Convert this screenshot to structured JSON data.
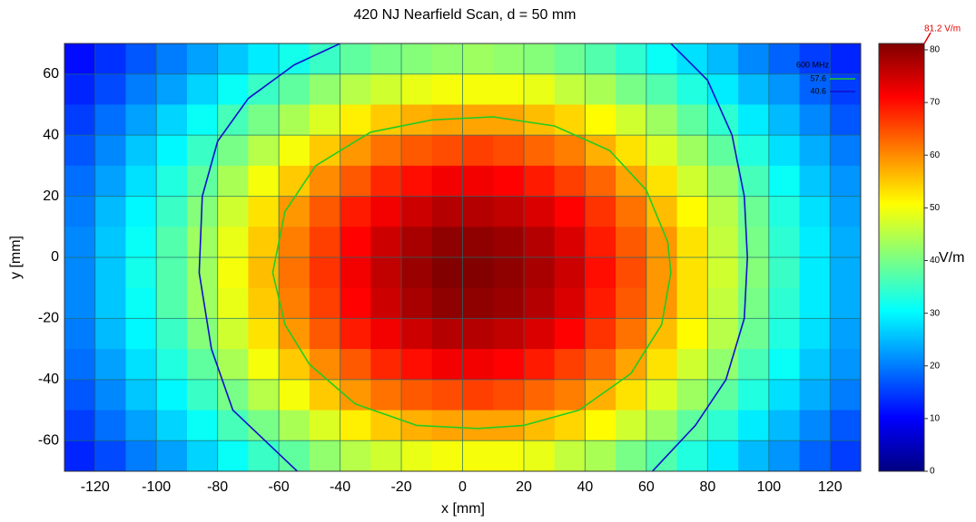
{
  "chart_data": {
    "type": "heatmap",
    "title": "420 NJ Nearfield Scan, d = 50 mm",
    "x_label": "x [mm]",
    "y_label": "y [mm]",
    "xlim": [
      -130,
      130
    ],
    "ylim": [
      -70,
      70
    ],
    "xticks": [
      -120,
      -100,
      -80,
      -60,
      -40,
      -20,
      0,
      20,
      40,
      60,
      80,
      100,
      120
    ],
    "yticks": [
      -60,
      -40,
      -20,
      0,
      20,
      40,
      60
    ],
    "grid": true,
    "x": [
      -125,
      -115,
      -105,
      -95,
      -85,
      -75,
      -65,
      -55,
      -45,
      -35,
      -25,
      -15,
      -5,
      5,
      15,
      25,
      35,
      45,
      55,
      65,
      75,
      85,
      95,
      105,
      115,
      125
    ],
    "y": [
      65,
      55,
      45,
      35,
      25,
      15,
      5,
      -5,
      -15,
      -25,
      -35,
      -45,
      -55,
      -65
    ],
    "z": [
      [
        11,
        14,
        17,
        20,
        23,
        26,
        29,
        32,
        35,
        38,
        40,
        41,
        42,
        43,
        42,
        41,
        39,
        37,
        34,
        31,
        28,
        25,
        21,
        18,
        15,
        13
      ],
      [
        13,
        16,
        20,
        23,
        27,
        31,
        35,
        38,
        42,
        45,
        47,
        49,
        50,
        50,
        50,
        49,
        46,
        44,
        40,
        37,
        33,
        29,
        25,
        22,
        18,
        15
      ],
      [
        15,
        19,
        23,
        27,
        31,
        36,
        40,
        44,
        48,
        52,
        55,
        57,
        58,
        58,
        58,
        56,
        54,
        51,
        47,
        43,
        38,
        34,
        29,
        25,
        21,
        17
      ],
      [
        17,
        21,
        26,
        30,
        35,
        40,
        45,
        50,
        55,
        59,
        62,
        64,
        65,
        66,
        65,
        63,
        61,
        57,
        53,
        48,
        43,
        38,
        33,
        28,
        24,
        20
      ],
      [
        19,
        23,
        28,
        33,
        38,
        44,
        50,
        55,
        60,
        64,
        68,
        70,
        72,
        72,
        71,
        69,
        66,
        63,
        58,
        53,
        47,
        42,
        36,
        31,
        26,
        22
      ],
      [
        20,
        25,
        30,
        35,
        41,
        47,
        53,
        59,
        64,
        69,
        72,
        75,
        77,
        77,
        76,
        74,
        71,
        67,
        62,
        56,
        51,
        45,
        39,
        33,
        28,
        23
      ],
      [
        21,
        26,
        31,
        37,
        43,
        49,
        55,
        61,
        66,
        71,
        75,
        78,
        80,
        80,
        79,
        77,
        74,
        69,
        64,
        59,
        53,
        46,
        40,
        34,
        29,
        24
      ],
      [
        21,
        26,
        32,
        37,
        43,
        50,
        56,
        62,
        67,
        72,
        76,
        79,
        81,
        81,
        80,
        78,
        75,
        70,
        65,
        59,
        53,
        47,
        41,
        35,
        29,
        24
      ],
      [
        21,
        26,
        31,
        37,
        43,
        49,
        55,
        61,
        66,
        71,
        75,
        78,
        80,
        80,
        79,
        77,
        74,
        69,
        64,
        59,
        53,
        46,
        40,
        34,
        29,
        24
      ],
      [
        20,
        25,
        30,
        35,
        41,
        47,
        53,
        59,
        64,
        69,
        72,
        75,
        77,
        77,
        76,
        74,
        71,
        67,
        62,
        56,
        51,
        45,
        39,
        33,
        28,
        23
      ],
      [
        19,
        23,
        28,
        33,
        38,
        44,
        50,
        55,
        60,
        64,
        68,
        70,
        72,
        72,
        71,
        69,
        66,
        63,
        58,
        53,
        47,
        42,
        36,
        31,
        26,
        22
      ],
      [
        17,
        21,
        26,
        30,
        35,
        40,
        45,
        50,
        55,
        59,
        62,
        64,
        65,
        66,
        65,
        63,
        61,
        57,
        53,
        48,
        43,
        38,
        33,
        28,
        24,
        20
      ],
      [
        15,
        19,
        23,
        27,
        31,
        36,
        40,
        44,
        48,
        52,
        55,
        57,
        58,
        58,
        58,
        56,
        54,
        51,
        47,
        43,
        38,
        34,
        29,
        25,
        21,
        17
      ],
      [
        13,
        16,
        20,
        23,
        27,
        31,
        35,
        38,
        42,
        45,
        47,
        49,
        50,
        50,
        50,
        49,
        46,
        44,
        40,
        37,
        33,
        29,
        25,
        22,
        18,
        15
      ]
    ],
    "colormap": "jet",
    "clim": [
      0,
      81.2
    ],
    "cticks": [
      0,
      10,
      20,
      30,
      40,
      50,
      60,
      70,
      80
    ],
    "colorbar_label": "V/m",
    "max": {
      "value": 81.2,
      "label": "81.2 V/m"
    },
    "legend_title": "600 MHz",
    "legend_position": "upper right",
    "contours": [
      {
        "name": "57.6",
        "level": 57.6,
        "color": "#22cc22",
        "x": [
          -62,
          -58,
          -48,
          -30,
          -10,
          10,
          30,
          48,
          60,
          67,
          68,
          65,
          55,
          38,
          20,
          5,
          -15,
          -35,
          -50,
          -58,
          -62
        ],
        "y": [
          -5,
          15,
          30,
          41,
          45,
          46,
          43,
          35,
          22,
          5,
          -5,
          -22,
          -38,
          -50,
          -55,
          -56,
          -55,
          -48,
          -35,
          -22,
          -5
        ]
      },
      {
        "name": "40.6",
        "level": 40.6,
        "color": "#1010cc",
        "x": [
          -40,
          -55,
          -70,
          -80,
          -85,
          -86,
          -82,
          -75,
          -54,
          null,
          68,
          80,
          88,
          92,
          93,
          92,
          86,
          76,
          62
        ],
        "y": [
          70,
          63,
          52,
          38,
          20,
          -5,
          -30,
          -50,
          -70,
          null,
          70,
          58,
          40,
          20,
          0,
          -20,
          -40,
          -55,
          -70
        ]
      }
    ]
  }
}
